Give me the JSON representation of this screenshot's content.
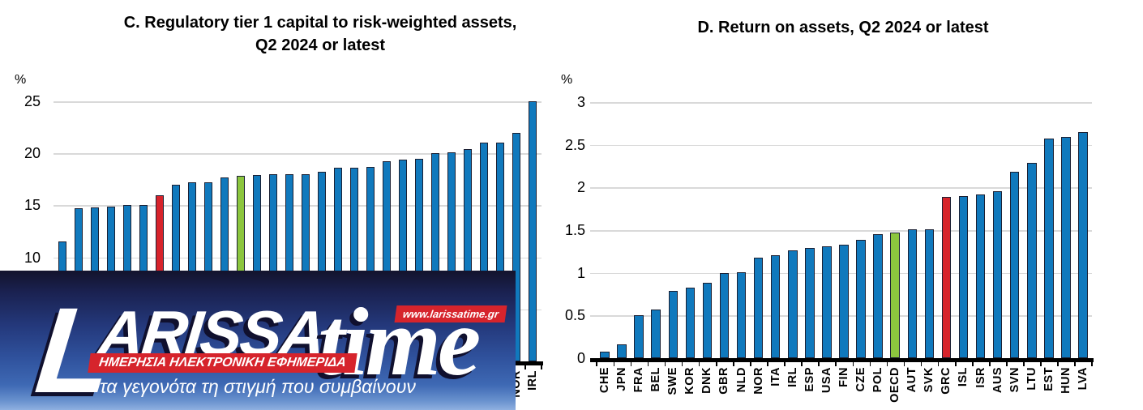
{
  "charts": {
    "c": {
      "title_line1": "C. Regulatory tier 1 capital to risk-weighted assets,",
      "title_line2": "Q2 2024 or latest",
      "unit": "%"
    },
    "d": {
      "title": "D. Return on assets, Q2 2024 or latest",
      "unit": "%"
    }
  },
  "chart_data": [
    {
      "id": "C",
      "type": "bar",
      "title": "C. Regulatory tier 1 capital to risk-weighted assets, Q2 2024 or latest",
      "ylabel": "%",
      "ylim": [
        0,
        25
      ],
      "yticks_visible": [
        25,
        20,
        15,
        10
      ],
      "gridline_values": [
        25,
        20,
        15,
        10,
        5
      ],
      "grid": true,
      "legend": "none",
      "categories": [
        "",
        "",
        "",
        "",
        "",
        "",
        "",
        "",
        "",
        "",
        "",
        "",
        "",
        "",
        "",
        "",
        "",
        "",
        "",
        "",
        "",
        "",
        "",
        "",
        "",
        "",
        "",
        "",
        "NOR",
        "IRL"
      ],
      "values": [
        11.5,
        14.7,
        14.8,
        14.9,
        15.0,
        15.0,
        16.0,
        17.0,
        17.2,
        17.2,
        17.7,
        17.8,
        17.9,
        18.0,
        18.0,
        18.0,
        18.2,
        18.6,
        18.6,
        18.7,
        19.2,
        19.4,
        19.5,
        20.0,
        20.1,
        20.4,
        21.0,
        21.0,
        22.0,
        25.0
      ],
      "highlight_red_index": 6,
      "highlight_green_index": 11,
      "note": "x-axis category labels hidden behind watermark banner except NOR and IRL"
    },
    {
      "id": "D",
      "type": "bar",
      "title": "D. Return on assets, Q2 2024 or latest",
      "ylabel": "%",
      "ylim": [
        0,
        3
      ],
      "yticks_visible": [
        3,
        2.5,
        2,
        1.5,
        1,
        0.5,
        0
      ],
      "gridline_values": [
        3,
        2.5,
        2,
        1.5,
        1,
        0.5
      ],
      "grid": true,
      "legend": "none",
      "categories": [
        "CHE",
        "JPN",
        "FRA",
        "BEL",
        "SWE",
        "KOR",
        "DNK",
        "GBR",
        "NLD",
        "NOR",
        "ITA",
        "IRL",
        "ESP",
        "USA",
        "FIN",
        "CZE",
        "POL",
        "OECD",
        "AUT",
        "SVK",
        "GRC",
        "ISL",
        "ISR",
        "AUS",
        "SVN",
        "LTU",
        "EST",
        "HUN",
        "LVA"
      ],
      "values": [
        0.08,
        0.16,
        0.5,
        0.57,
        0.79,
        0.83,
        0.88,
        1.0,
        1.01,
        1.18,
        1.21,
        1.26,
        1.29,
        1.31,
        1.33,
        1.39,
        1.45,
        1.47,
        1.51,
        1.51,
        1.89,
        1.9,
        1.92,
        1.96,
        2.18,
        2.29,
        2.57,
        2.59,
        2.65
      ],
      "highlight_red_index": 20,
      "highlight_green_index": 17
    }
  ],
  "colors": {
    "bar_blue": "#1079bd",
    "bar_red": "#d7232b",
    "bar_green": "#8cc63e",
    "bar_outline": "#1b2033",
    "gridline": "#d9d9d9",
    "axis": "#000000",
    "watermark_red": "#d6242c"
  },
  "watermark": {
    "brand_initial": "L",
    "brand_rest": "ARISSA",
    "brand_accent": "time",
    "url": "www.larissatime.gr",
    "subtitle": "ΗΜΕΡΗΣΙΑ ΗΛΕΚΤΡΟΝΙΚΗ ΕΦΗΜΕΡΙΔΑ",
    "tagline": "τα γεγονότα τη στιγμή που συμβαίνουν"
  }
}
